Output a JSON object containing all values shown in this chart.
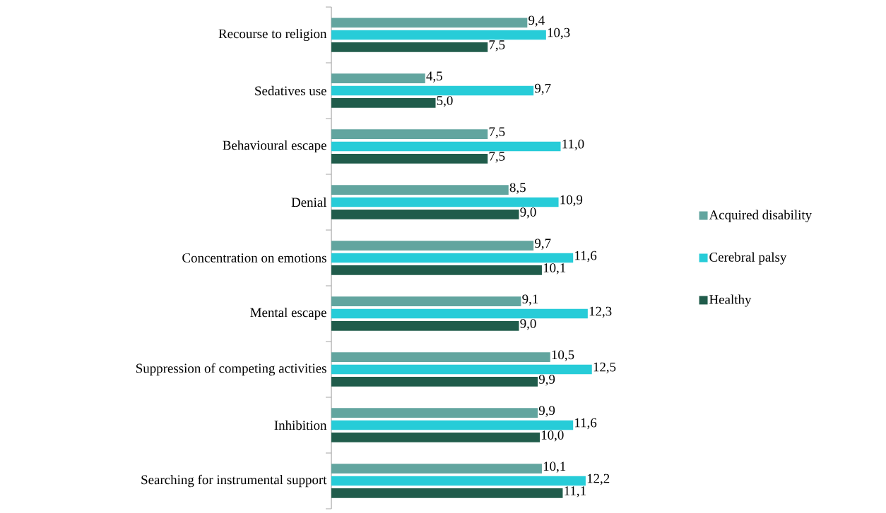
{
  "chart_data": {
    "type": "bar",
    "orientation": "horizontal",
    "categories": [
      "Recourse to religion",
      "Sedatives use",
      "Behavioural escape",
      "Denial",
      "Concentration on emotions",
      "Mental escape",
      "Suppression of competing activities",
      "Inhibition",
      "Searching for instrumental support"
    ],
    "series": [
      {
        "name": "Acquired disability",
        "color": "#62a59f",
        "values": [
          9.4,
          4.5,
          7.5,
          8.5,
          9.7,
          9.1,
          10.5,
          9.9,
          10.1
        ],
        "value_labels": [
          "9,4",
          "4,5",
          "7,5",
          "8,5",
          "9,7",
          "9,1",
          "10,5",
          "9,9",
          "10,1"
        ]
      },
      {
        "name": "Cerebral palsy",
        "color": "#27ccd8",
        "values": [
          10.3,
          9.7,
          11.0,
          10.9,
          11.6,
          12.3,
          12.5,
          11.6,
          12.2
        ],
        "value_labels": [
          "10,3",
          "9,7",
          "11,0",
          "10,9",
          "11,6",
          "12,3",
          "12,5",
          "11,6",
          "12,2"
        ]
      },
      {
        "name": "Healthy",
        "color": "#205c4b",
        "values": [
          7.5,
          5.0,
          7.5,
          9.0,
          10.1,
          9.0,
          9.9,
          10.0,
          11.1
        ],
        "value_labels": [
          "7,5",
          "5,0",
          "7,5",
          "9,0",
          "10,1",
          "9,0",
          "9,9",
          "10,0",
          "11,1"
        ]
      }
    ],
    "legend": "right"
  }
}
